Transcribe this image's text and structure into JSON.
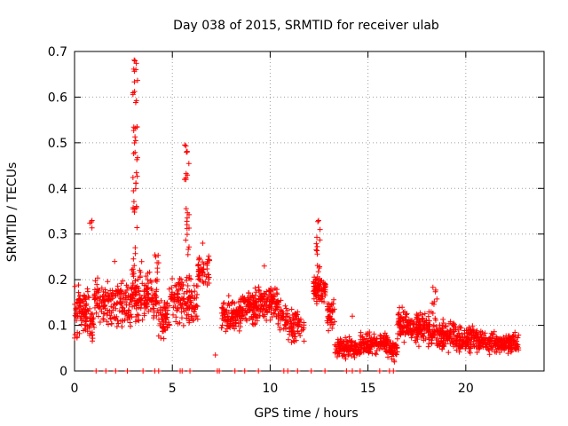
{
  "chart_data": {
    "type": "scatter",
    "title": "Day 038 of 2015, SRMTID for receiver ulab",
    "xlabel": "GPS time / hours",
    "ylabel": "SRMTID / TECUs",
    "xlim": [
      0,
      24
    ],
    "ylim": [
      0,
      0.7
    ],
    "xticks": [
      0,
      5,
      10,
      15,
      20
    ],
    "xtick_labels": [
      "0",
      "5",
      "10",
      "15",
      "20"
    ],
    "yticks": [
      0,
      0.1,
      0.2,
      0.3,
      0.4,
      0.5,
      0.6,
      0.7
    ],
    "ytick_labels": [
      "0",
      "0.1",
      "0.2",
      "0.3",
      "0.4",
      "0.5",
      "0.6",
      "0.7"
    ],
    "grid": true,
    "marker": "+",
    "color": "#ff0000",
    "series": [
      {
        "name": "SRMTID",
        "segments": [
          {
            "start": 0.0,
            "end": 0.75,
            "base": 0.13,
            "spread": 0.07,
            "n": 90
          },
          {
            "start": 0.75,
            "end": 1.0,
            "base": 0.11,
            "spread": 0.06,
            "n": 25
          },
          {
            "start": 1.0,
            "end": 1.3,
            "base": 0.16,
            "spread": 0.07,
            "n": 30
          },
          {
            "start": 1.3,
            "end": 2.2,
            "base": 0.15,
            "spread": 0.07,
            "n": 80
          },
          {
            "start": 2.2,
            "end": 2.9,
            "base": 0.15,
            "spread": 0.08,
            "n": 70
          },
          {
            "start": 2.9,
            "end": 3.6,
            "base": 0.17,
            "spread": 0.08,
            "n": 80
          },
          {
            "start": 3.6,
            "end": 4.3,
            "base": 0.16,
            "spread": 0.07,
            "n": 70
          },
          {
            "start": 4.3,
            "end": 4.9,
            "base": 0.12,
            "spread": 0.07,
            "n": 60
          },
          {
            "start": 4.9,
            "end": 5.5,
            "base": 0.16,
            "spread": 0.07,
            "n": 60
          },
          {
            "start": 5.5,
            "end": 6.3,
            "base": 0.15,
            "spread": 0.08,
            "n": 75
          },
          {
            "start": 6.3,
            "end": 6.9,
            "base": 0.22,
            "spread": 0.05,
            "n": 50
          },
          {
            "start": 7.5,
            "end": 8.5,
            "base": 0.12,
            "spread": 0.05,
            "n": 110
          },
          {
            "start": 8.5,
            "end": 9.4,
            "base": 0.14,
            "spread": 0.05,
            "n": 110
          },
          {
            "start": 9.4,
            "end": 10.4,
            "base": 0.15,
            "spread": 0.05,
            "n": 110
          },
          {
            "start": 10.4,
            "end": 10.9,
            "base": 0.12,
            "spread": 0.05,
            "n": 40
          },
          {
            "start": 10.9,
            "end": 11.4,
            "base": 0.1,
            "spread": 0.05,
            "n": 50
          },
          {
            "start": 11.4,
            "end": 11.8,
            "base": 0.09,
            "spread": 0.04,
            "n": 20
          },
          {
            "start": 12.2,
            "end": 12.9,
            "base": 0.18,
            "spread": 0.04,
            "n": 75
          },
          {
            "start": 12.9,
            "end": 13.3,
            "base": 0.12,
            "spread": 0.05,
            "n": 45
          },
          {
            "start": 13.3,
            "end": 14.6,
            "base": 0.05,
            "spread": 0.03,
            "n": 130
          },
          {
            "start": 14.6,
            "end": 16.0,
            "base": 0.06,
            "spread": 0.035,
            "n": 140
          },
          {
            "start": 16.0,
            "end": 16.5,
            "base": 0.05,
            "spread": 0.03,
            "n": 50
          },
          {
            "start": 16.5,
            "end": 17.5,
            "base": 0.1,
            "spread": 0.05,
            "n": 110
          },
          {
            "start": 17.5,
            "end": 18.5,
            "base": 0.09,
            "spread": 0.05,
            "n": 110
          },
          {
            "start": 18.5,
            "end": 19.5,
            "base": 0.08,
            "spread": 0.045,
            "n": 110
          },
          {
            "start": 19.5,
            "end": 20.8,
            "base": 0.07,
            "spread": 0.04,
            "n": 140
          },
          {
            "start": 20.8,
            "end": 22.7,
            "base": 0.06,
            "spread": 0.03,
            "n": 180
          }
        ],
        "spikes": [
          {
            "x": 3.1,
            "y_min": 0.18,
            "y_max": 0.69,
            "n": 45
          },
          {
            "x": 5.75,
            "y_min": 0.2,
            "y_max": 0.5,
            "n": 25
          },
          {
            "x": 12.45,
            "y_min": 0.18,
            "y_max": 0.33,
            "n": 20
          },
          {
            "x": 0.85,
            "y_min": 0.31,
            "y_max": 0.33,
            "n": 4
          },
          {
            "x": 4.2,
            "y_min": 0.2,
            "y_max": 0.27,
            "n": 6
          },
          {
            "x": 18.4,
            "y_min": 0.12,
            "y_max": 0.19,
            "n": 8
          }
        ],
        "outliers": [
          {
            "x": 7.2,
            "y": 0.035
          },
          {
            "x": 4.15,
            "y": 0.25
          },
          {
            "x": 6.55,
            "y": 0.28
          },
          {
            "x": 2.05,
            "y": 0.24
          },
          {
            "x": 9.7,
            "y": 0.23
          },
          {
            "x": 14.2,
            "y": 0.12
          },
          {
            "x": 16.35,
            "y": 0.02
          }
        ],
        "zero_x": [
          1.1,
          1.6,
          2.1,
          2.7,
          3.5,
          4.1,
          4.3,
          5.4,
          5.5,
          5.9,
          7.3,
          7.4,
          8.2,
          8.7,
          9.4,
          10.7,
          10.9,
          11.4,
          12.1,
          12.8,
          13.9,
          14.2,
          14.6,
          15.6,
          16.1,
          16.3
        ]
      }
    ]
  }
}
